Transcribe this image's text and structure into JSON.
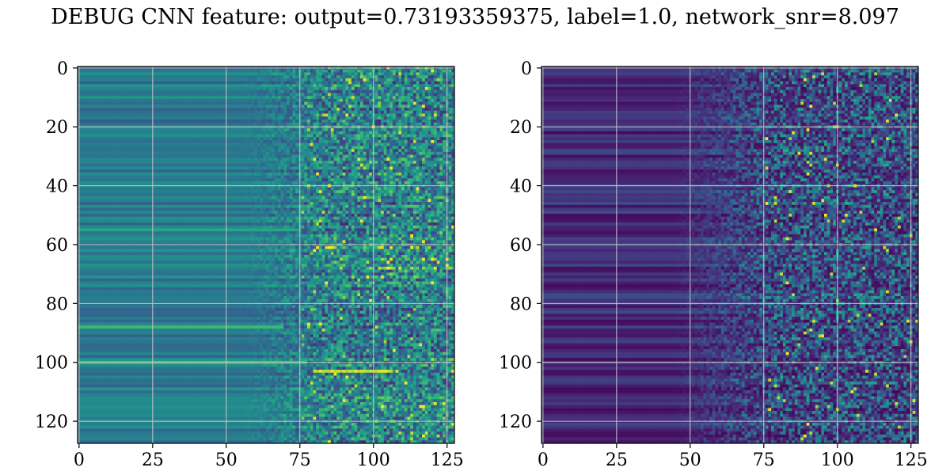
{
  "title": "DEBUG CNN feature: output=0.73193359375, label=1.0, network_snr=8.097",
  "chart_data": [
    {
      "type": "heatmap",
      "colormap": "viridis",
      "rows": 128,
      "cols": 128,
      "xlim": [
        0,
        127
      ],
      "ylim": [
        127,
        0
      ],
      "xticks": [
        0,
        25,
        50,
        75,
        100,
        125
      ],
      "yticks": [
        0,
        20,
        40,
        60,
        80,
        100,
        120
      ],
      "grid": true,
      "description_values": "Horizontal banded low-frequency intensity left, noisy high-frequency speckle right starting near x=75; bright streak near y=103, x=80-105"
    },
    {
      "type": "heatmap",
      "colormap": "viridis",
      "rows": 128,
      "cols": 128,
      "xlim": [
        0,
        127
      ],
      "ylim": [
        127,
        0
      ],
      "xticks": [
        0,
        25,
        50,
        75,
        100,
        125
      ],
      "yticks": [
        0,
        20,
        40,
        60,
        80,
        100,
        120
      ],
      "grid": true,
      "description_values": "Mostly dark purple, faint horizontal bands left, sparse bright speckle right starting near x=70"
    }
  ]
}
